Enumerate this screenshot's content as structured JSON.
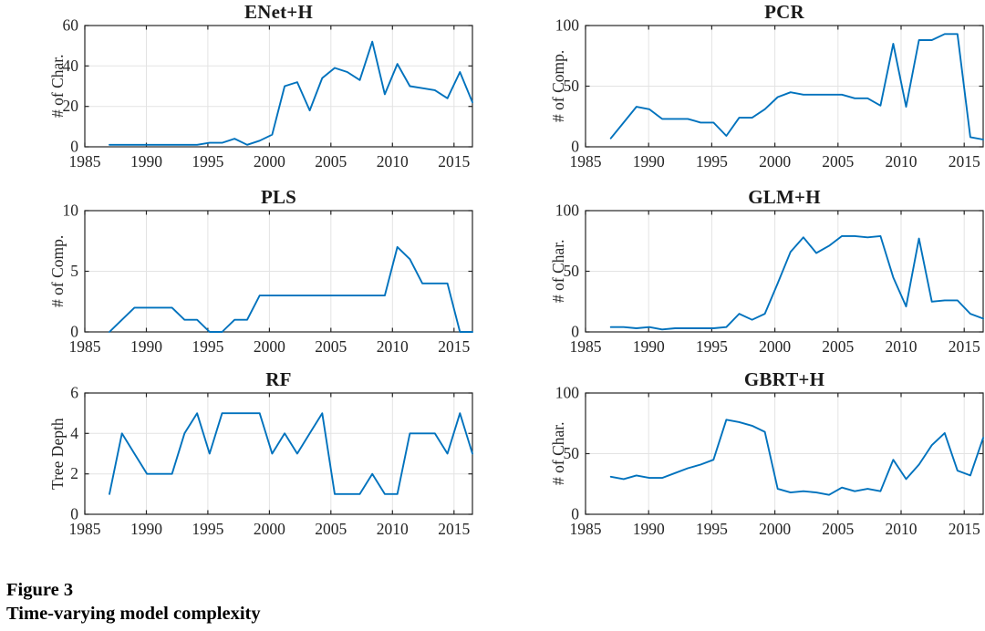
{
  "figure": {
    "label": "Figure 3",
    "caption": "Time-varying model complexity"
  },
  "colors": {
    "line": "#0072BD",
    "grid": "#E3E3E3",
    "axis": "#262626",
    "text": "#262626"
  },
  "chart_data": [
    {
      "type": "line",
      "title": "ENet+H",
      "ylabel": "# of Char.",
      "xlim": [
        1985,
        2016.5
      ],
      "ylim": [
        0,
        60
      ],
      "x_ticks": [
        1985,
        1990,
        1995,
        2000,
        2005,
        2010,
        2015
      ],
      "y_ticks": [
        0,
        20,
        40,
        60
      ],
      "grid": true,
      "legend": "none",
      "x": [
        1987,
        1988,
        1989,
        1990,
        1991,
        1992,
        1993,
        1994,
        1995,
        1996,
        1997,
        1998,
        1999,
        2000,
        2001,
        2002,
        2003,
        2004,
        2005,
        2006,
        2007,
        2008,
        2009,
        2010,
        2011,
        2012,
        2013,
        2014,
        2015,
        2016
      ],
      "values": [
        1,
        1,
        1,
        1,
        1,
        1,
        1,
        1,
        2,
        2,
        4,
        1,
        3,
        6,
        30,
        32,
        18,
        34,
        39,
        37,
        33,
        52,
        26,
        41,
        30,
        29,
        28,
        24,
        37,
        22
      ]
    },
    {
      "type": "line",
      "title": "PCR",
      "ylabel": "# of Comp.",
      "xlim": [
        1985,
        2016.5
      ],
      "ylim": [
        0,
        100
      ],
      "x_ticks": [
        1985,
        1990,
        1995,
        2000,
        2005,
        2010,
        2015
      ],
      "y_ticks": [
        0,
        50,
        100
      ],
      "grid": true,
      "legend": "none",
      "x": [
        1987,
        1988,
        1989,
        1990,
        1991,
        1992,
        1993,
        1994,
        1995,
        1996,
        1997,
        1998,
        1999,
        2000,
        2001,
        2002,
        2003,
        2004,
        2005,
        2006,
        2007,
        2008,
        2009,
        2010,
        2011,
        2012,
        2013,
        2014,
        2015,
        2016
      ],
      "values": [
        7,
        20,
        33,
        31,
        23,
        23,
        23,
        20,
        20,
        9,
        24,
        24,
        31,
        41,
        45,
        43,
        43,
        43,
        43,
        40,
        40,
        34,
        85,
        33,
        88,
        88,
        93,
        93,
        8,
        6
      ]
    },
    {
      "type": "line",
      "title": "PLS",
      "ylabel": "# of Comp.",
      "xlim": [
        1985,
        2016.5
      ],
      "ylim": [
        0,
        10
      ],
      "x_ticks": [
        1985,
        1990,
        1995,
        2000,
        2005,
        2010,
        2015
      ],
      "y_ticks": [
        0,
        5,
        10
      ],
      "grid": true,
      "legend": "none",
      "x": [
        1987,
        1988,
        1989,
        1990,
        1991,
        1992,
        1993,
        1994,
        1995,
        1996,
        1997,
        1998,
        1999,
        2000,
        2001,
        2002,
        2003,
        2004,
        2005,
        2006,
        2007,
        2008,
        2009,
        2010,
        2011,
        2012,
        2013,
        2014,
        2015,
        2016
      ],
      "values": [
        0,
        1,
        2,
        2,
        2,
        2,
        1,
        1,
        0,
        0,
        1,
        1,
        3,
        3,
        3,
        3,
        3,
        3,
        3,
        3,
        3,
        3,
        3,
        7,
        6,
        4,
        4,
        4,
        0,
        0
      ]
    },
    {
      "type": "line",
      "title": "GLM+H",
      "ylabel": "# of Char.",
      "xlim": [
        1985,
        2016.5
      ],
      "ylim": [
        0,
        100
      ],
      "x_ticks": [
        1985,
        1990,
        1995,
        2000,
        2005,
        2010,
        2015
      ],
      "y_ticks": [
        0,
        50,
        100
      ],
      "grid": true,
      "legend": "none",
      "x": [
        1987,
        1988,
        1989,
        1990,
        1991,
        1992,
        1993,
        1994,
        1995,
        1996,
        1997,
        1998,
        1999,
        2000,
        2001,
        2002,
        2003,
        2004,
        2005,
        2006,
        2007,
        2008,
        2009,
        2010,
        2011,
        2012,
        2013,
        2014,
        2015,
        2016
      ],
      "values": [
        4,
        4,
        3,
        4,
        2,
        3,
        3,
        3,
        3,
        4,
        15,
        10,
        15,
        40,
        66,
        78,
        65,
        71,
        79,
        79,
        78,
        79,
        45,
        21,
        77,
        25,
        26,
        26,
        15,
        11
      ]
    },
    {
      "type": "line",
      "title": "RF",
      "ylabel": "Tree Depth",
      "xlim": [
        1985,
        2016.5
      ],
      "ylim": [
        0,
        6
      ],
      "x_ticks": [
        1985,
        1990,
        1995,
        2000,
        2005,
        2010,
        2015
      ],
      "y_ticks": [
        0,
        2,
        4,
        6
      ],
      "grid": true,
      "legend": "none",
      "x": [
        1987,
        1988,
        1989,
        1990,
        1991,
        1992,
        1993,
        1994,
        1995,
        1996,
        1997,
        1998,
        1999,
        2000,
        2001,
        2002,
        2003,
        2004,
        2005,
        2006,
        2007,
        2008,
        2009,
        2010,
        2011,
        2012,
        2013,
        2014,
        2015,
        2016
      ],
      "values": [
        1,
        4,
        3,
        2,
        2,
        2,
        4,
        5,
        3,
        5,
        5,
        5,
        5,
        3,
        4,
        3,
        4,
        5,
        1,
        1,
        1,
        2,
        1,
        1,
        4,
        4,
        4,
        3,
        5,
        3
      ]
    },
    {
      "type": "line",
      "title": "GBRT+H",
      "ylabel": "# of Char.",
      "xlim": [
        1985,
        2016.5
      ],
      "ylim": [
        0,
        100
      ],
      "x_ticks": [
        1985,
        1990,
        1995,
        2000,
        2005,
        2010,
        2015
      ],
      "y_ticks": [
        0,
        50,
        100
      ],
      "grid": true,
      "legend": "none",
      "x": [
        1987,
        1988,
        1989,
        1990,
        1991,
        1992,
        1993,
        1994,
        1995,
        1996,
        1997,
        1998,
        1999,
        2000,
        2001,
        2002,
        2003,
        2004,
        2005,
        2006,
        2007,
        2008,
        2009,
        2010,
        2011,
        2012,
        2013,
        2014,
        2015,
        2016
      ],
      "values": [
        31,
        29,
        32,
        30,
        30,
        34,
        38,
        41,
        45,
        78,
        76,
        73,
        68,
        21,
        18,
        19,
        18,
        16,
        22,
        19,
        21,
        19,
        45,
        29,
        41,
        57,
        67,
        36,
        32,
        63
      ]
    }
  ]
}
